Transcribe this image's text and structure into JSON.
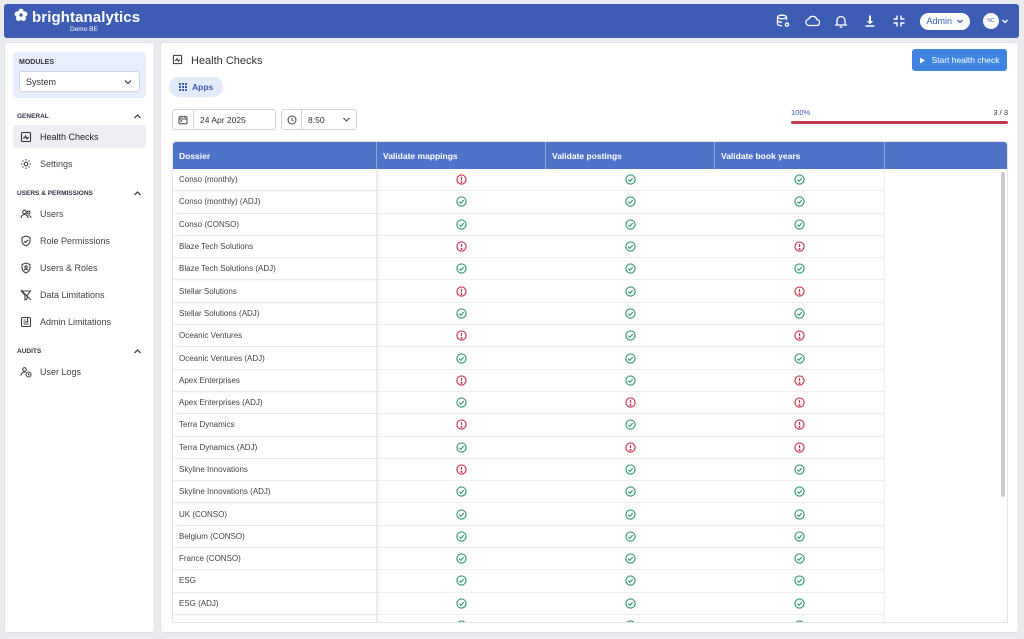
{
  "app": {
    "brand": "brightanalytics",
    "subtitle": "Demo BE"
  },
  "topbar": {
    "admin_label": "Admin",
    "avatar_initials": "NC"
  },
  "sidebar": {
    "modules_label": "MODULES",
    "modules_value": "System",
    "sections": {
      "general": "GENERAL",
      "users": "USERS & PERMISSIONS",
      "audits": "AUDITS"
    },
    "items": {
      "health_checks": "Health Checks",
      "settings": "Settings",
      "users": "Users",
      "role_permissions": "Role Permissions",
      "users_roles": "Users & Roles",
      "data_limitations": "Data Limitations",
      "admin_limitations": "Admin Limitations",
      "user_logs": "User Logs"
    }
  },
  "main": {
    "title": "Health Checks",
    "start_button": "Start health check",
    "apps_tab": "Apps",
    "date": "24 Apr 2025",
    "time": "8:50",
    "progress": {
      "percent_label": "100%",
      "count_label": "3 / 3",
      "fraction": 1.0
    }
  },
  "table": {
    "columns": [
      "Dossier",
      "Validate mappings",
      "Validate postings",
      "Validate book years"
    ],
    "rows": [
      {
        "name": "Conso (monthly)",
        "status": [
          "error",
          "ok",
          "ok"
        ]
      },
      {
        "name": "Conso (monthly) (ADJ)",
        "status": [
          "ok",
          "ok",
          "ok"
        ]
      },
      {
        "name": "Conso (CONSO)",
        "status": [
          "ok",
          "ok",
          "ok"
        ]
      },
      {
        "name": "Blaze Tech Solutions",
        "status": [
          "error",
          "ok",
          "error"
        ]
      },
      {
        "name": "Blaze Tech Solutions (ADJ)",
        "status": [
          "ok",
          "ok",
          "ok"
        ]
      },
      {
        "name": "Stellar Solutions",
        "status": [
          "error",
          "ok",
          "error"
        ]
      },
      {
        "name": "Stellar Solutions (ADJ)",
        "status": [
          "ok",
          "ok",
          "ok"
        ]
      },
      {
        "name": "Oceanic Ventures",
        "status": [
          "error",
          "ok",
          "error"
        ]
      },
      {
        "name": "Oceanic Ventures (ADJ)",
        "status": [
          "ok",
          "ok",
          "ok"
        ]
      },
      {
        "name": "Apex Enterprises",
        "status": [
          "error",
          "ok",
          "error"
        ]
      },
      {
        "name": "Apex Enterprises (ADJ)",
        "status": [
          "ok",
          "error",
          "error"
        ]
      },
      {
        "name": "Terra Dynamics",
        "status": [
          "error",
          "ok",
          "error"
        ]
      },
      {
        "name": "Terra Dynamics (ADJ)",
        "status": [
          "ok",
          "error",
          "error"
        ]
      },
      {
        "name": "Skyline Innovations",
        "status": [
          "error",
          "ok",
          "ok"
        ]
      },
      {
        "name": "Skyline Innovations (ADJ)",
        "status": [
          "ok",
          "ok",
          "ok"
        ]
      },
      {
        "name": "UK (CONSO)",
        "status": [
          "ok",
          "ok",
          "ok"
        ]
      },
      {
        "name": "Belgium (CONSO)",
        "status": [
          "ok",
          "ok",
          "ok"
        ]
      },
      {
        "name": "France (CONSO)",
        "status": [
          "ok",
          "ok",
          "ok"
        ]
      },
      {
        "name": "ESG",
        "status": [
          "ok",
          "ok",
          "ok"
        ]
      },
      {
        "name": "ESG (ADJ)",
        "status": [
          "ok",
          "ok",
          "ok"
        ]
      },
      {
        "name": "",
        "status": [
          "ok",
          "ok",
          "ok"
        ]
      }
    ]
  },
  "colors": {
    "primary": "#3d5db5",
    "ok": "#3b9a6d",
    "error": "#c8394f",
    "button": "#3e84e0"
  }
}
